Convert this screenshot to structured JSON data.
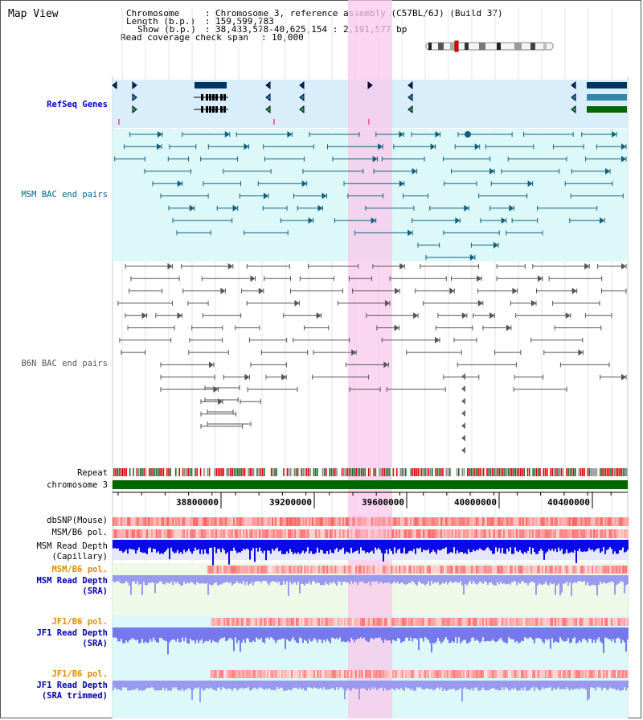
{
  "app_title": "Map View",
  "header": {
    "chromosome_key": "Chromosome",
    "chromosome_val": "Chromosome 3, reference assembly (C57BL/6J) (Build 37)",
    "length_key": "Length (b.p.)",
    "length_val": "159,599,783",
    "show_key": "Show (b.p.)",
    "show_val": "38,433,578-40,625,154 : 2,191,577 bp",
    "coverage_key": "Read coverage check span",
    "coverage_val": "10,000"
  },
  "tracks": {
    "refseq": "RefSeq Genes",
    "msm_bac": "MSM BAC end pairs",
    "b6n_bac": "B6N BAC end pairs",
    "repeat": "Repeat",
    "chromosome": "chromosome 3",
    "dbsnp": "dbSNP(Mouse)",
    "msm_b6_pol": "MSM/B6 pol.",
    "msm_depth_cap_1": "MSM Read Depth",
    "msm_depth_cap_2": "(Capillary)",
    "msm_b6_pol_2": "MSM/B6 pol.",
    "msm_depth_sra_1": "MSM Read Depth",
    "msm_depth_sra_2": "(SRA)",
    "jf1_b6_pol": "JF1/B6 pol.",
    "jf1_depth_sra_1": "JF1 Read Depth",
    "jf1_depth_sra_2": "(SRA)",
    "jf1_b6_pol_2": "JF1/B6 pol.",
    "jf1_depth_trim_1": "JF1 Read Depth",
    "jf1_depth_trim_2": "(SRA trimmed)"
  },
  "axis_ticks": [
    "38800000",
    "39200000",
    "39600000",
    "40000000",
    "40400000"
  ],
  "colors": {
    "refseq_label": "#0000cc",
    "msm_label": "#006688",
    "b6n_label": "#555555",
    "pol_label": "#e08a00",
    "depth_label": "#0000aa",
    "highlight": "#f8c8ec",
    "refseq_bg": "#d8eefa",
    "msm_bg": "#ddf8f8",
    "chromosome": "#006600"
  }
}
